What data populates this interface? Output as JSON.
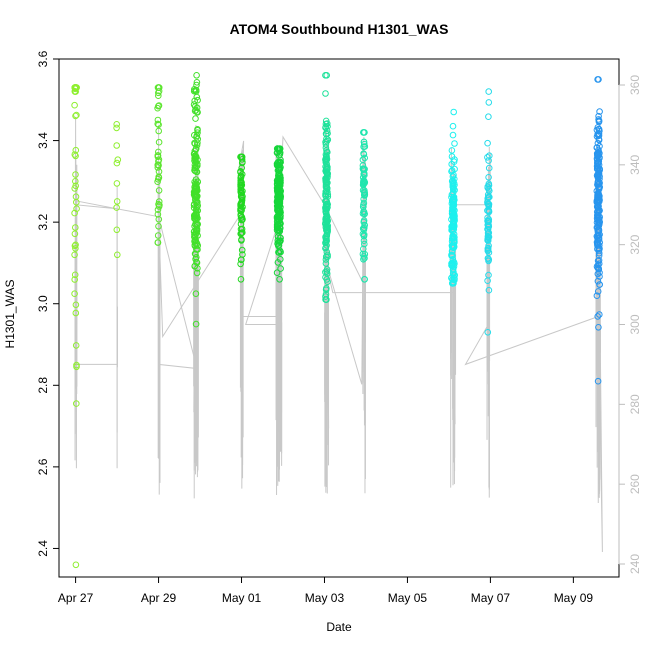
{
  "chart_data": {
    "type": "scatter",
    "title": "ATOM4 Southbound H1301_WAS",
    "xlabel": "Date",
    "ylabel": "H1301_WAS",
    "xlim": [
      -0.4,
      13.1
    ],
    "ylim": [
      2.33,
      3.6
    ],
    "x_ticks": [
      {
        "label": "Apr 27",
        "x": 0
      },
      {
        "label": "Apr 29",
        "x": 2
      },
      {
        "label": "May 01",
        "x": 4
      },
      {
        "label": "May 03",
        "x": 6
      },
      {
        "label": "May 05",
        "x": 8
      },
      {
        "label": "May 07",
        "x": 10
      },
      {
        "label": "May 09",
        "x": 12
      }
    ],
    "y_ticks": [
      {
        "label": "2.4",
        "y": 2.4
      },
      {
        "label": "2.6",
        "y": 2.6
      },
      {
        "label": "2.8",
        "y": 2.8
      },
      {
        "label": "3.0",
        "y": 3.0
      },
      {
        "label": "3.2",
        "y": 3.2
      },
      {
        "label": "3.4",
        "y": 3.4
      },
      {
        "label": "3.6",
        "y": 3.6
      }
    ],
    "y2_range": [
      240,
      360
    ],
    "y2_ticks": [
      {
        "label": "240",
        "y": 240
      },
      {
        "label": "260",
        "y": 260
      },
      {
        "label": "280",
        "y": 280
      },
      {
        "label": "300",
        "y": 300
      },
      {
        "label": "320",
        "y": 320
      },
      {
        "label": "340",
        "y": 340
      },
      {
        "label": "360",
        "y": 360
      }
    ],
    "clusters": [
      {
        "x": 0.0,
        "xspread": 0.05,
        "n": 45,
        "ymin": 2.36,
        "ymax": 3.53,
        "center": 3.28,
        "sd": 0.32,
        "color": "#8fef30"
      },
      {
        "x": 1.0,
        "xspread": 0.04,
        "n": 10,
        "ymin": 3.12,
        "ymax": 3.44,
        "center": 3.3,
        "sd": 0.1,
        "color": "#8fef30"
      },
      {
        "x": 2.0,
        "xspread": 0.05,
        "n": 42,
        "ymin": 3.15,
        "ymax": 3.53,
        "center": 3.37,
        "sd": 0.1,
        "color": "#5de530"
      },
      {
        "x": 2.9,
        "xspread": 0.09,
        "n": 160,
        "ymin": 2.95,
        "ymax": 3.56,
        "center": 3.28,
        "sd": 0.12,
        "color": "#42e02a"
      },
      {
        "x": 4.0,
        "xspread": 0.05,
        "n": 70,
        "ymin": 3.06,
        "ymax": 3.36,
        "center": 3.25,
        "sd": 0.07,
        "color": "#22d820"
      },
      {
        "x": 4.9,
        "xspread": 0.09,
        "n": 190,
        "ymin": 3.06,
        "ymax": 3.38,
        "center": 3.25,
        "sd": 0.07,
        "color": "#16d63a"
      },
      {
        "x": 6.05,
        "xspread": 0.06,
        "n": 160,
        "ymin": 3.01,
        "ymax": 3.56,
        "center": 3.24,
        "sd": 0.11,
        "color": "#1ee29a"
      },
      {
        "x": 6.95,
        "xspread": 0.05,
        "n": 70,
        "ymin": 3.06,
        "ymax": 3.42,
        "center": 3.25,
        "sd": 0.08,
        "color": "#20e6ae"
      },
      {
        "x": 9.1,
        "xspread": 0.08,
        "n": 140,
        "ymin": 3.05,
        "ymax": 3.47,
        "center": 3.2,
        "sd": 0.09,
        "color": "#1ef0ee"
      },
      {
        "x": 9.95,
        "xspread": 0.05,
        "n": 70,
        "ymin": 2.93,
        "ymax": 3.52,
        "center": 3.22,
        "sd": 0.1,
        "color": "#27dcea"
      },
      {
        "x": 12.6,
        "xspread": 0.07,
        "n": 190,
        "ymin": 2.81,
        "ymax": 3.55,
        "center": 3.26,
        "sd": 0.12,
        "color": "#2895ee"
      }
    ],
    "trajectory_y2": [
      [
        0.0,
        299
      ],
      [
        0.0,
        352
      ],
      [
        0.02,
        264
      ],
      [
        0.03,
        340
      ],
      [
        0.0,
        290
      ],
      [
        0.0,
        330
      ],
      [
        1.0,
        329
      ],
      [
        1.0,
        264
      ],
      [
        1.0,
        290
      ],
      [
        0.0,
        290
      ],
      [
        0.0,
        331
      ],
      [
        2.0,
        327
      ],
      [
        2.0,
        350
      ],
      [
        2.0,
        290
      ],
      [
        2.9,
        289
      ],
      [
        2.9,
        350
      ],
      [
        2.85,
        278
      ],
      [
        2.95,
        345
      ],
      [
        2.9,
        290
      ],
      [
        2.0,
        327
      ],
      [
        2.1,
        297
      ],
      [
        4.0,
        328
      ],
      [
        3.95,
        340
      ],
      [
        4.05,
        346
      ],
      [
        4.0,
        302
      ],
      [
        4.85,
        302
      ],
      [
        4.85,
        345
      ],
      [
        4.95,
        338
      ],
      [
        4.9,
        300
      ],
      [
        4.1,
        300
      ],
      [
        4.9,
        326
      ],
      [
        5.0,
        347
      ],
      [
        6.0,
        330
      ],
      [
        6.05,
        350
      ],
      [
        6.1,
        274
      ],
      [
        6.0,
        330
      ],
      [
        6.95,
        310
      ],
      [
        6.95,
        347
      ],
      [
        6.9,
        285
      ],
      [
        6.0,
        317
      ],
      [
        6.2,
        308
      ],
      [
        9.1,
        308
      ],
      [
        9.05,
        342
      ],
      [
        9.15,
        275
      ],
      [
        9.1,
        330
      ],
      [
        9.95,
        330
      ],
      [
        10.0,
        343
      ],
      [
        9.95,
        277
      ],
      [
        9.95,
        300
      ],
      [
        9.4,
        290
      ],
      [
        12.6,
        302
      ],
      [
        12.6,
        344
      ],
      [
        12.7,
        243
      ],
      [
        12.6,
        302
      ]
    ]
  }
}
